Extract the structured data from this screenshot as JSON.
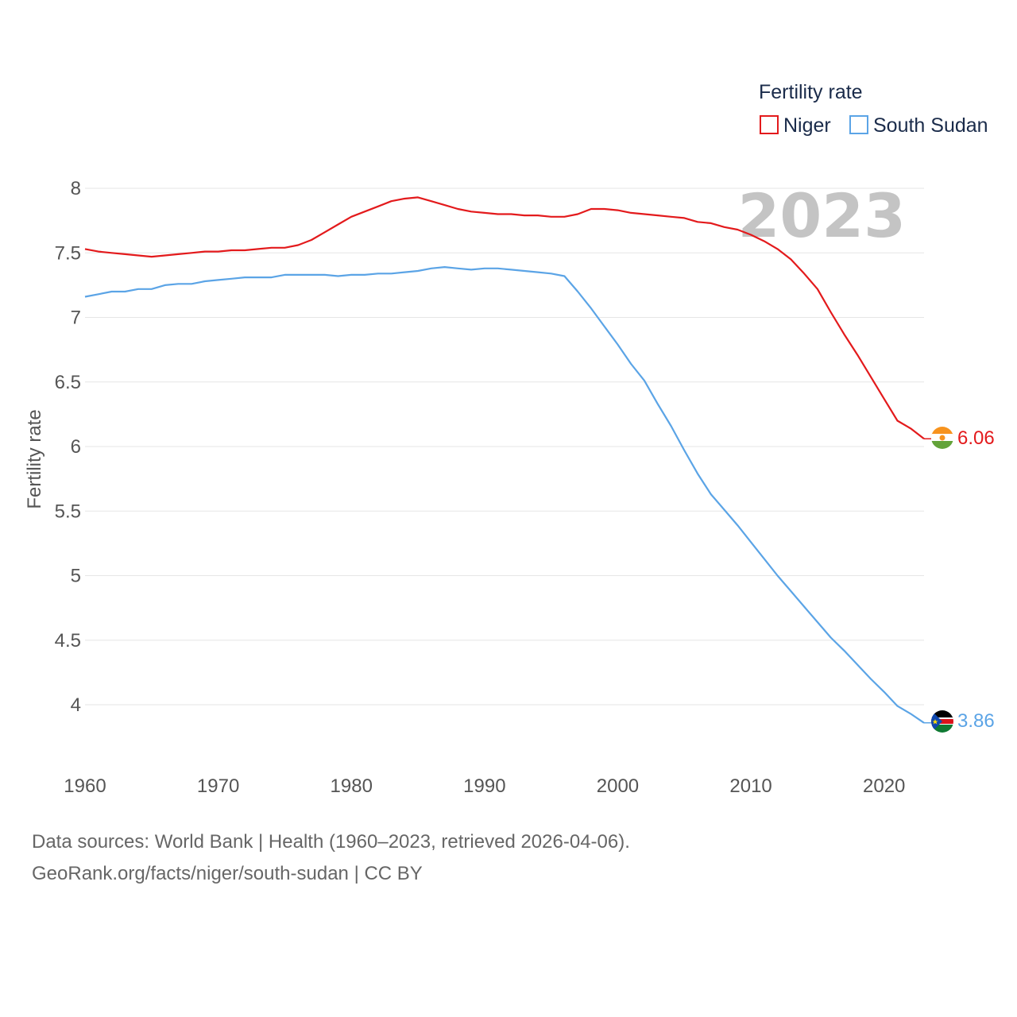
{
  "chart_data": {
    "type": "line",
    "title": "Fertility rate",
    "year_label": "2023",
    "xlabel": "",
    "ylabel": "Fertility rate",
    "xlim": [
      1960,
      2023
    ],
    "ylim": [
      3.7,
      8.0
    ],
    "xticks": [
      1960,
      1970,
      1980,
      1990,
      2000,
      2010,
      2020
    ],
    "yticks": [
      4,
      4.5,
      5,
      5.5,
      6,
      6.5,
      7,
      7.5,
      8
    ],
    "ytick_labels": [
      "4",
      "4.5",
      "5",
      "5.5",
      "6",
      "6.5",
      "7",
      "7.5",
      "8"
    ],
    "legend": {
      "title": "Fertility rate",
      "position": "top-right"
    },
    "x": [
      1960,
      1961,
      1962,
      1963,
      1964,
      1965,
      1966,
      1967,
      1968,
      1969,
      1970,
      1971,
      1972,
      1973,
      1974,
      1975,
      1976,
      1977,
      1978,
      1979,
      1980,
      1981,
      1982,
      1983,
      1984,
      1985,
      1986,
      1987,
      1988,
      1989,
      1990,
      1991,
      1992,
      1993,
      1994,
      1995,
      1996,
      1997,
      1998,
      1999,
      2000,
      2001,
      2002,
      2003,
      2004,
      2005,
      2006,
      2007,
      2008,
      2009,
      2010,
      2011,
      2012,
      2013,
      2014,
      2015,
      2016,
      2017,
      2018,
      2019,
      2020,
      2021,
      2022,
      2023
    ],
    "series": [
      {
        "name": "Niger",
        "color": "#e31a1c",
        "end_label": "6.06",
        "flag": "niger-flag",
        "values": [
          7.53,
          7.51,
          7.5,
          7.49,
          7.48,
          7.47,
          7.48,
          7.49,
          7.5,
          7.51,
          7.51,
          7.52,
          7.52,
          7.53,
          7.54,
          7.54,
          7.56,
          7.6,
          7.66,
          7.72,
          7.78,
          7.82,
          7.86,
          7.9,
          7.92,
          7.93,
          7.9,
          7.87,
          7.84,
          7.82,
          7.81,
          7.8,
          7.8,
          7.79,
          7.79,
          7.78,
          7.78,
          7.8,
          7.84,
          7.84,
          7.83,
          7.81,
          7.8,
          7.79,
          7.78,
          7.77,
          7.74,
          7.73,
          7.7,
          7.68,
          7.64,
          7.59,
          7.53,
          7.45,
          7.34,
          7.22,
          7.04,
          6.87,
          6.71,
          6.54,
          6.37,
          6.2,
          6.14,
          6.06
        ]
      },
      {
        "name": "South Sudan",
        "color": "#5ba4e6",
        "end_label": "3.86",
        "flag": "south-sudan-flag",
        "values": [
          7.16,
          7.18,
          7.2,
          7.2,
          7.22,
          7.22,
          7.25,
          7.26,
          7.26,
          7.28,
          7.29,
          7.3,
          7.31,
          7.31,
          7.31,
          7.33,
          7.33,
          7.33,
          7.33,
          7.32,
          7.33,
          7.33,
          7.34,
          7.34,
          7.35,
          7.36,
          7.38,
          7.39,
          7.38,
          7.37,
          7.38,
          7.38,
          7.37,
          7.36,
          7.35,
          7.34,
          7.32,
          7.2,
          7.07,
          6.93,
          6.79,
          6.64,
          6.51,
          6.33,
          6.16,
          5.97,
          5.79,
          5.63,
          5.51,
          5.39,
          5.26,
          5.13,
          5.0,
          4.88,
          4.76,
          4.64,
          4.52,
          4.42,
          4.31,
          4.2,
          4.1,
          3.99,
          3.93,
          3.86
        ]
      }
    ]
  },
  "source": {
    "line1": "Data sources: World Bank | Health (1960–2023, retrieved 2026-04-06).",
    "line2": "GeoRank.org/facts/niger/south-sudan | CC BY"
  }
}
